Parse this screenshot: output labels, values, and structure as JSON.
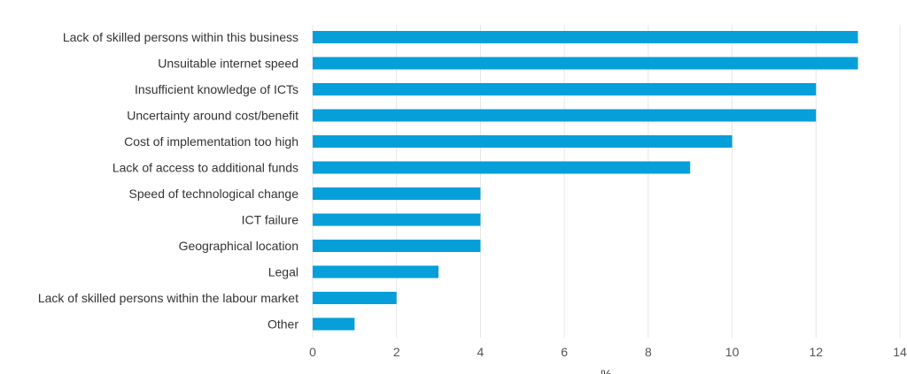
{
  "chart_data": {
    "type": "bar",
    "orientation": "horizontal",
    "title": "",
    "xlabel": "%",
    "ylabel": "",
    "categories": [
      "Lack of skilled persons within this business",
      "Unsuitable internet speed",
      "Insufficient knowledge of ICTs",
      "Uncertainty around cost/benefit",
      "Cost of implementation too high",
      "Lack of access to additional funds",
      "Speed of technological change",
      "ICT failure",
      "Geographical location",
      "Legal",
      "Lack of skilled persons within the labour market",
      "Other"
    ],
    "values": [
      13,
      13,
      12,
      12,
      10,
      9,
      4,
      4,
      4,
      3,
      2,
      1
    ],
    "xlim": [
      0,
      14
    ],
    "xticks": [
      "0",
      "2",
      "4",
      "6",
      "8",
      "10",
      "12",
      "14"
    ],
    "grid": "vertical",
    "legend": "none",
    "bar_color": "#069fd9"
  }
}
